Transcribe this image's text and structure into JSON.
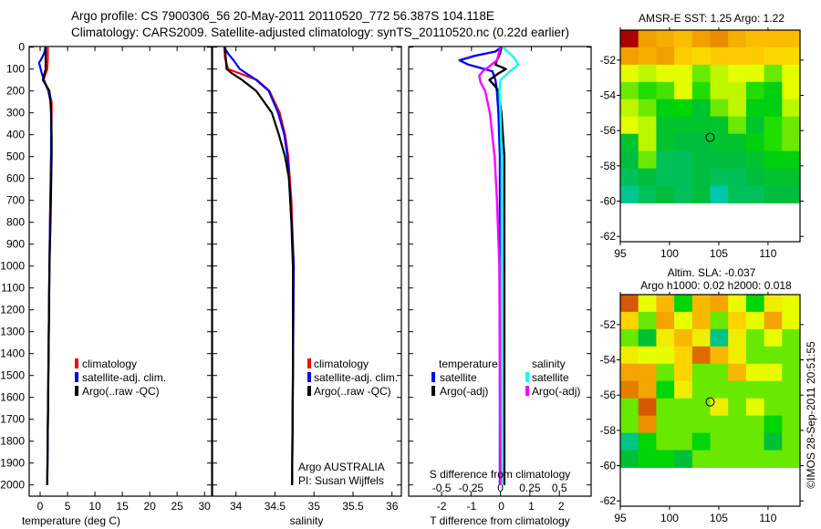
{
  "header": {
    "line1": "Argo profile: CS 7900306_56 20-May-2011 20110520_772 56.387S 104.118E",
    "line2": "Climatology: CARS2009. Satellite-adjusted climatology: synTS_20110520.nc (0.22d earlier)"
  },
  "credits": {
    "program": "Argo AUSTRALIA",
    "pi": "PI: Susan Wijffels",
    "stamp": "©IMOS 28-Sep-2011 20:51:55"
  },
  "colors": {
    "climatology": "#ff0000",
    "satellite": "#0000ff",
    "argo": "#000000",
    "sal_satellite": "#00ffff",
    "sal_argo": "#ff00ff"
  },
  "chart_data": [
    {
      "type": "line",
      "name": "temperature-profile",
      "xlabel": "temperature (deg C)",
      "ylabel": "",
      "xlim": [
        -2,
        31.3
      ],
      "ylim": [
        2050,
        0
      ],
      "xticks": [
        0,
        5,
        10,
        15,
        20,
        25,
        30
      ],
      "yticks": [
        0,
        100,
        200,
        300,
        400,
        500,
        600,
        700,
        800,
        900,
        1000,
        1100,
        1200,
        1300,
        1400,
        1500,
        1600,
        1700,
        1800,
        1900,
        2000
      ],
      "legend": {
        "position": "lower-left",
        "entries": [
          "climatology",
          "satellite-adj. clim.",
          "Argo(..raw -QC)"
        ]
      },
      "series": [
        {
          "name": "climatology",
          "color": "#ff0000",
          "depth": [
            0,
            50,
            100,
            150,
            200,
            250,
            300,
            500,
            800,
            1000,
            1500,
            2000
          ],
          "values": [
            1.4,
            1.4,
            1.3,
            0.6,
            1.6,
            2.1,
            2.1,
            2.0,
            1.8,
            1.7,
            1.5,
            1.3
          ]
        },
        {
          "name": "satellite-adj. clim.",
          "color": "#0000ff",
          "depth": [
            0,
            30,
            60,
            70,
            90,
            120,
            150,
            200,
            250,
            300,
            500,
            800,
            1000,
            1500,
            2000
          ],
          "values": [
            1.0,
            0.7,
            0.1,
            -0.2,
            0.0,
            0.3,
            0.7,
            1.5,
            1.9,
            2.0,
            2.0,
            1.8,
            1.7,
            1.5,
            1.3
          ]
        },
        {
          "name": "Argo(..raw -QC)",
          "color": "#000000",
          "depth": [
            0,
            50,
            100,
            120,
            150,
            200,
            250,
            300,
            400,
            500,
            800,
            1000,
            1500,
            2000
          ],
          "values": [
            1.0,
            1.0,
            1.0,
            0.8,
            0.5,
            1.7,
            1.9,
            2.0,
            2.1,
            2.1,
            1.9,
            1.7,
            1.5,
            1.3
          ]
        }
      ]
    },
    {
      "type": "line",
      "name": "salinity-profile",
      "xlabel": "salinity",
      "xlim": [
        33.7,
        36.12
      ],
      "ylim": [
        2050,
        0
      ],
      "xticks": [
        34,
        34.5,
        35,
        35.5,
        36
      ],
      "legend": {
        "position": "lower-right",
        "entries": [
          "climatology",
          "satellite-adj. clim.",
          "Argo(..raw -QC)"
        ]
      },
      "series": [
        {
          "name": "climatology",
          "color": "#ff0000",
          "depth": [
            0,
            50,
            100,
            120,
            150,
            200,
            300,
            400,
            500,
            600,
            700,
            1000,
            1500,
            2000
          ],
          "values": [
            33.85,
            33.86,
            33.9,
            34.05,
            34.27,
            34.43,
            34.56,
            34.63,
            34.67,
            34.69,
            34.71,
            34.74,
            34.73,
            34.72
          ]
        },
        {
          "name": "satellite-adj. clim.",
          "color": "#0000ff",
          "depth": [
            0,
            30,
            60,
            100,
            150,
            200,
            300,
            400,
            500,
            700,
            1000,
            1500,
            2000
          ],
          "values": [
            33.85,
            33.9,
            33.97,
            34.05,
            34.26,
            34.42,
            34.54,
            34.62,
            34.66,
            34.7,
            34.74,
            34.73,
            34.72
          ]
        },
        {
          "name": "Argo(..raw -QC)",
          "color": "#000000",
          "depth": [
            0,
            50,
            100,
            120,
            150,
            200,
            300,
            400,
            500,
            600,
            800,
            1000,
            1500,
            2000
          ],
          "values": [
            33.86,
            33.87,
            33.88,
            33.95,
            34.08,
            34.26,
            34.46,
            34.55,
            34.63,
            34.68,
            34.71,
            34.73,
            34.73,
            34.72
          ]
        }
      ]
    },
    {
      "type": "line",
      "name": "difference-profile",
      "xlabel": "T difference from climatology",
      "xlabel2": "S difference from climatology",
      "xlim_T": [
        -3.1,
        3.0
      ],
      "xlim_S": [
        -0.78,
        0.77
      ],
      "xticks_T": [
        -2,
        -1,
        0,
        1,
        2
      ],
      "xticks_S": [
        -0.5,
        -0.25,
        0,
        0.25,
        0.5
      ],
      "xticklabels_S": [
        "-0.5",
        "-0.25",
        "0",
        "0.25",
        "0.5"
      ],
      "ylim": [
        2050,
        0
      ],
      "legend": {
        "temperature_heading": "temperature",
        "salinity_heading": "salinity",
        "entries": [
          "satellite",
          "Argo(-adj)",
          "satellite",
          "Argo(-adj)"
        ]
      },
      "series": [
        {
          "name": "temperature satellite",
          "axis": "T",
          "color": "#0000ff",
          "depth": [
            0,
            20,
            40,
            60,
            80,
            110,
            150,
            200,
            300,
            500,
            1000,
            2000
          ],
          "values": [
            0,
            -0.2,
            -0.9,
            -1.4,
            -1.1,
            -0.3,
            -0.2,
            -0.15,
            -0.1,
            -0.05,
            -0.05,
            -0.05
          ]
        },
        {
          "name": "temperature Argo(-adj)",
          "axis": "T",
          "color": "#000000",
          "depth": [
            0,
            30,
            60,
            80,
            100,
            120,
            150,
            180,
            200,
            300,
            500,
            1000,
            2000
          ],
          "values": [
            0,
            -0.05,
            -0.15,
            -0.2,
            0.15,
            -0.1,
            -0.4,
            -0.2,
            -0.1,
            0.0,
            0.1,
            0.1,
            0.1
          ]
        },
        {
          "name": "salinity satellite",
          "axis": "S",
          "color": "#00ffff",
          "depth": [
            0,
            20,
            50,
            80,
            110,
            150,
            200,
            300,
            500,
            1000,
            2000
          ],
          "values": [
            0.02,
            0.06,
            0.12,
            0.15,
            0.08,
            0.0,
            -0.01,
            0.0,
            0.01,
            0.01,
            0.01
          ]
        },
        {
          "name": "salinity Argo(-adj)",
          "axis": "S",
          "color": "#ff00ff",
          "depth": [
            0,
            60,
            90,
            110,
            130,
            160,
            200,
            300,
            500,
            700,
            1000,
            2000
          ],
          "values": [
            0.0,
            -0.03,
            -0.1,
            -0.15,
            -0.18,
            -0.17,
            -0.13,
            -0.09,
            -0.05,
            -0.03,
            -0.01,
            0.0
          ]
        }
      ]
    },
    {
      "type": "heatmap",
      "name": "sst-map",
      "title": "AMSR-E SST: 1.25 Argo: 1.22",
      "xlim": [
        95,
        113.25
      ],
      "ylim": [
        -62.3,
        -50.3
      ],
      "xticks": [
        95,
        100,
        105,
        110
      ],
      "yticks": [
        -52,
        -54,
        -56,
        -58,
        -60,
        -62
      ],
      "grid_lon": [
        95,
        113.25
      ],
      "grid_lat": [
        -50.3,
        -60.1
      ],
      "float_position": {
        "lon": 104.118,
        "lat": -56.387
      },
      "value_range": [
        0.5,
        3.2
      ],
      "values": [
        [
          3.2,
          2.6,
          2.5,
          2.4,
          2.6,
          2.7,
          2.5,
          2.4,
          2.4,
          2.4
        ],
        [
          2.6,
          2.5,
          2.6,
          2.3,
          2.2,
          2.3,
          2.3,
          2.3,
          2.2,
          2.2
        ],
        [
          1.9,
          1.8,
          1.9,
          1.9,
          1.6,
          1.8,
          1.9,
          1.9,
          1.6,
          1.9
        ],
        [
          1.6,
          1.4,
          1.5,
          1.9,
          1.4,
          1.8,
          1.8,
          1.4,
          1.2,
          1.9
        ],
        [
          1.8,
          1.6,
          1.2,
          1.3,
          1.0,
          1.6,
          1.8,
          1.2,
          1.2,
          1.8
        ],
        [
          1.9,
          1.8,
          1.0,
          1.0,
          1.0,
          1.0,
          1.6,
          1.0,
          1.4,
          1.6
        ],
        [
          1.0,
          1.8,
          1.0,
          0.9,
          0.9,
          1.0,
          1.0,
          1.2,
          1.4,
          1.6
        ],
        [
          0.9,
          1.6,
          0.8,
          0.8,
          0.9,
          0.9,
          0.9,
          1.0,
          1.2,
          1.2
        ],
        [
          0.8,
          0.9,
          0.8,
          0.8,
          0.9,
          0.8,
          0.8,
          0.9,
          1.0,
          1.0
        ],
        [
          0.6,
          0.8,
          0.9,
          0.8,
          0.9,
          0.5,
          0.8,
          0.8,
          0.9,
          0.9
        ]
      ]
    },
    {
      "type": "heatmap",
      "name": "sla-map",
      "title": "Altim. SLA: -0.037",
      "subtitle": "Argo h1000: 0.02 h2000: 0.018",
      "xlim": [
        95,
        113.25
      ],
      "ylim": [
        -62.3,
        -50.3
      ],
      "xticks": [
        95,
        100,
        105,
        110
      ],
      "yticks": [
        -52,
        -54,
        -56,
        -58,
        -60,
        -62
      ],
      "grid_lon": [
        95,
        113.25
      ],
      "grid_lat": [
        -50.3,
        -60.1
      ],
      "float_position": {
        "lon": 104.118,
        "lat": -56.387
      },
      "value_range": [
        -0.22,
        0.2
      ],
      "values": [
        [
          0.15,
          0.0,
          0.08,
          -0.1,
          0.08,
          0.1,
          0.0,
          -0.1,
          0.02,
          0.0
        ],
        [
          0.05,
          -0.05,
          0.1,
          0.0,
          0.08,
          -0.05,
          0.05,
          0.0,
          0.1,
          0.0
        ],
        [
          -0.05,
          -0.15,
          0.02,
          0.08,
          0.02,
          -0.2,
          0.02,
          -0.05,
          0.0,
          -0.05
        ],
        [
          0.02,
          0.0,
          0.0,
          0.05,
          0.14,
          0.08,
          0.02,
          -0.05,
          -0.05,
          -0.05
        ],
        [
          0.1,
          0.1,
          -0.05,
          0.05,
          -0.05,
          -0.05,
          0.08,
          0.0,
          0.0,
          -0.05
        ],
        [
          0.13,
          0.1,
          -0.1,
          0.02,
          -0.05,
          -0.05,
          -0.05,
          -0.05,
          -0.05,
          -0.05
        ],
        [
          -0.05,
          0.15,
          -0.05,
          -0.05,
          -0.05,
          0.02,
          -0.05,
          0.0,
          -0.05,
          -0.05
        ],
        [
          -0.05,
          0.12,
          -0.05,
          -0.05,
          -0.05,
          -0.05,
          -0.05,
          -0.05,
          -0.1,
          -0.05
        ],
        [
          -0.2,
          -0.1,
          -0.05,
          -0.05,
          -0.1,
          -0.05,
          -0.05,
          -0.05,
          -0.15,
          -0.05
        ],
        [
          -0.15,
          -0.1,
          -0.1,
          -0.15,
          -0.05,
          -0.05,
          -0.05,
          -0.05,
          -0.05,
          -0.05
        ]
      ]
    }
  ]
}
